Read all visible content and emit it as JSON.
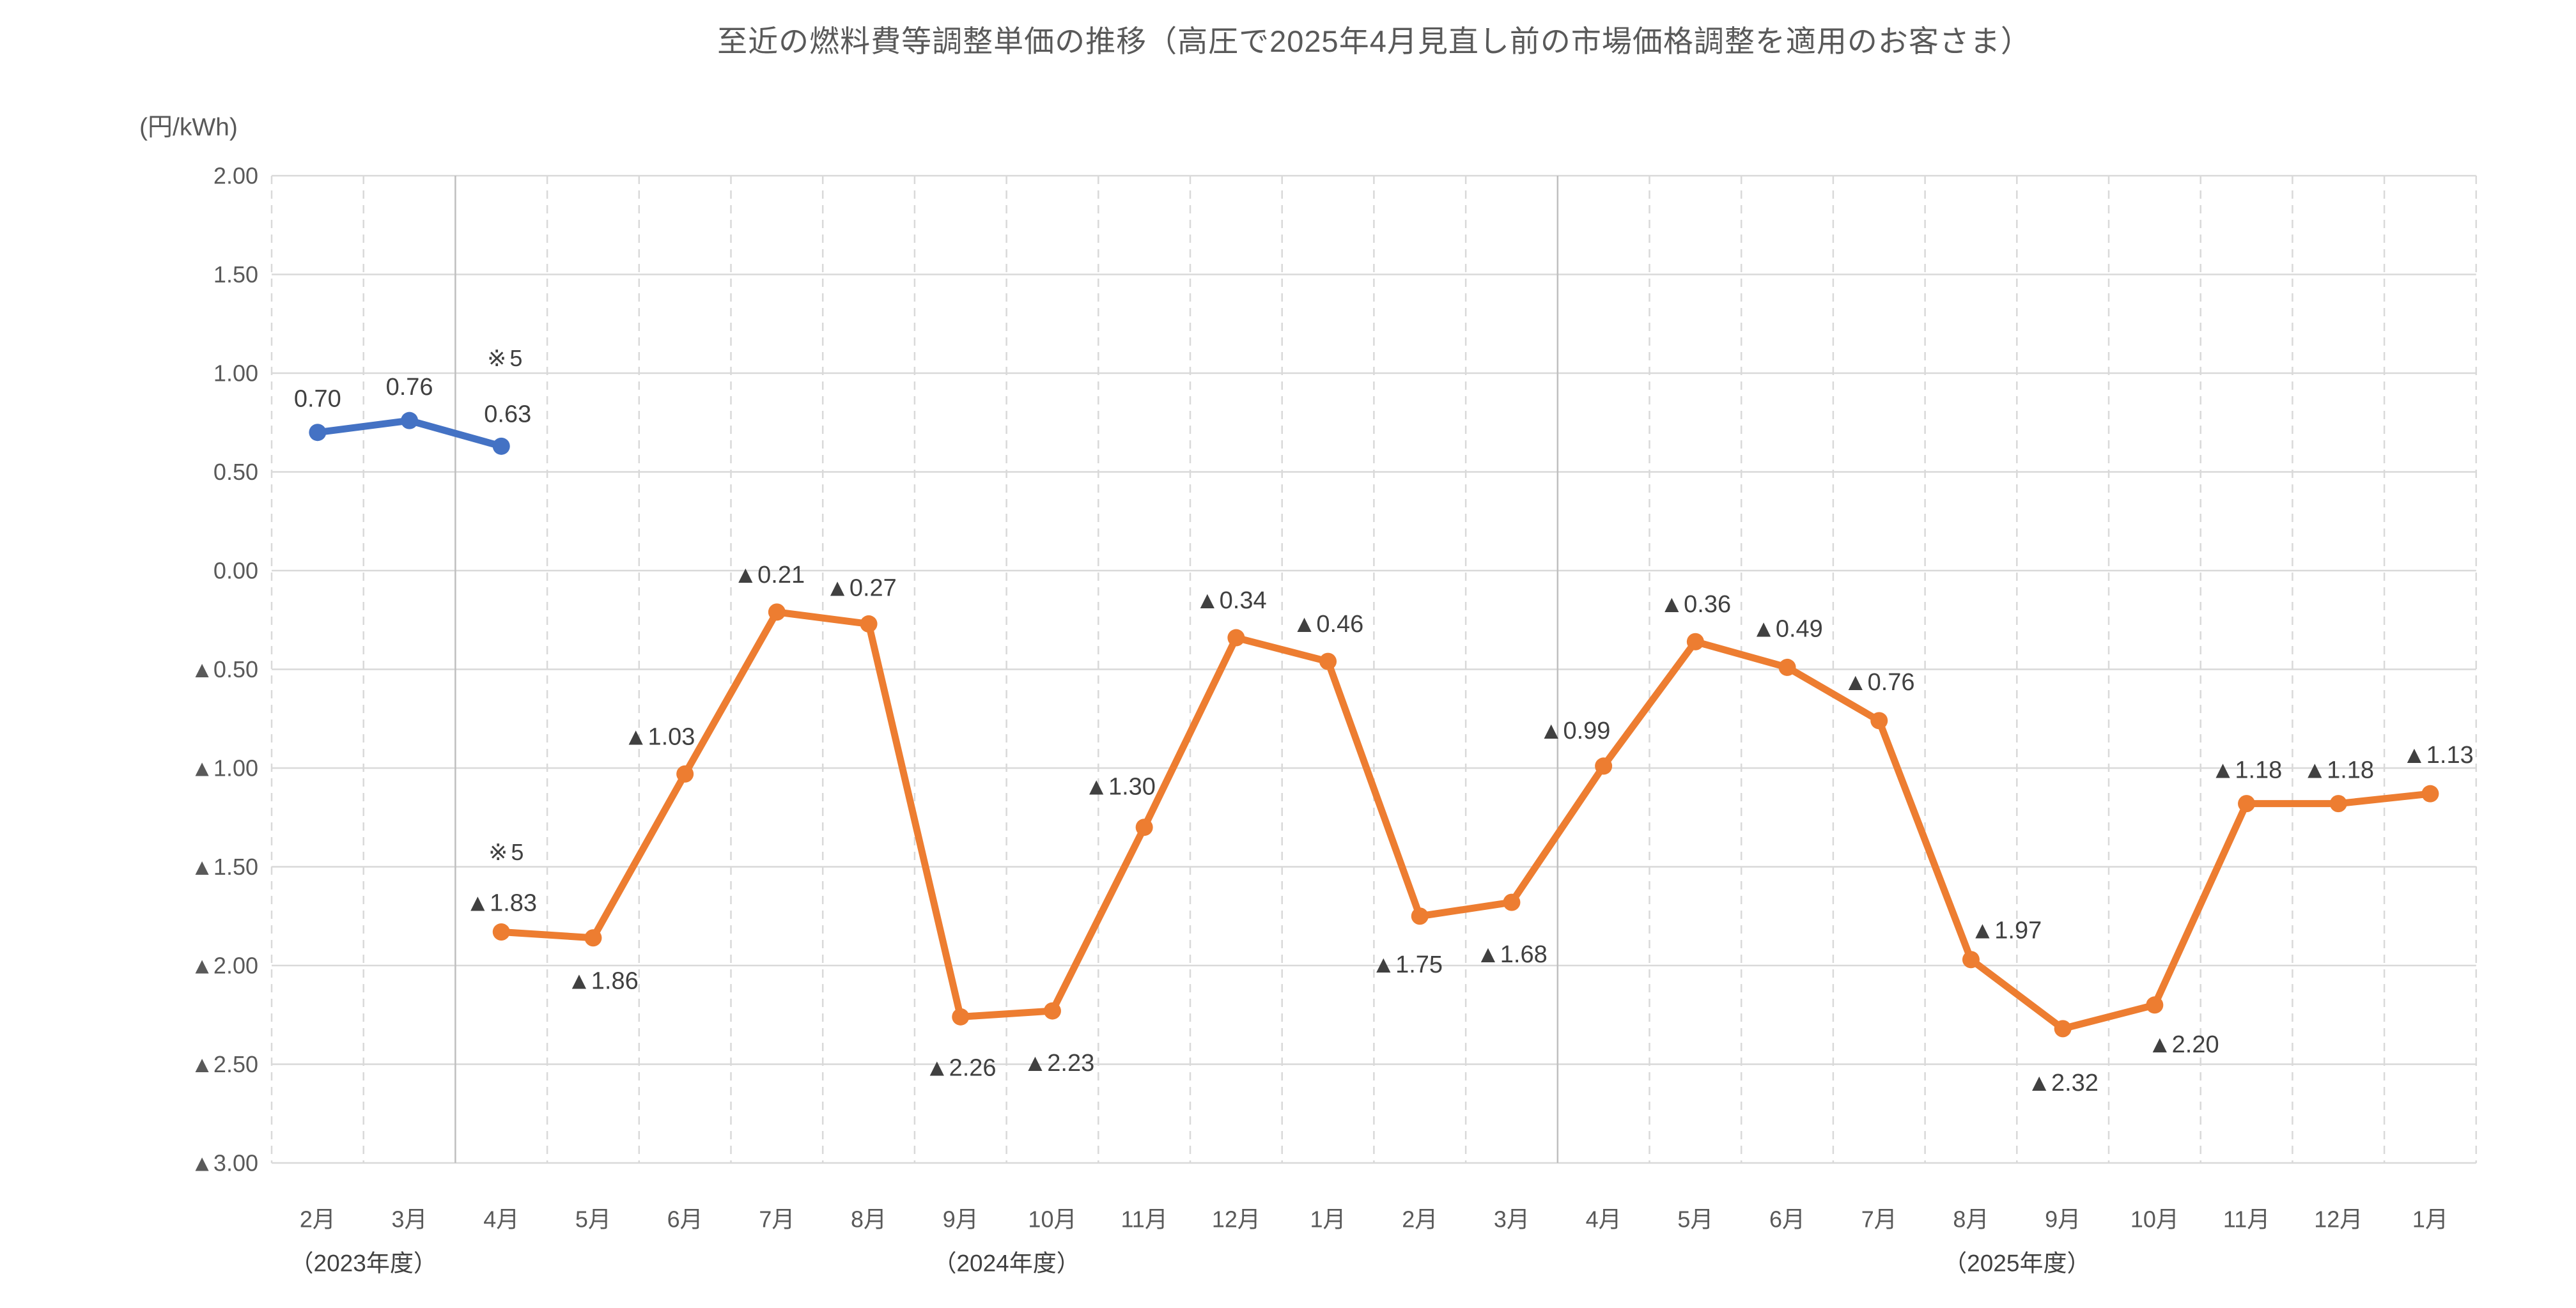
{
  "title": "至近の燃料費等調整単価の推移（高圧で2025年4月見直し前の市場価格調整を適用のお客さま）",
  "y_axis": {
    "unit": "(円/kWh)",
    "ticks": [
      {
        "v": 2.0,
        "label": "2.00"
      },
      {
        "v": 1.5,
        "label": "1.50"
      },
      {
        "v": 1.0,
        "label": "1.00"
      },
      {
        "v": 0.5,
        "label": "0.50"
      },
      {
        "v": 0.0,
        "label": "0.00"
      },
      {
        "v": -0.5,
        "label": "▲0.50"
      },
      {
        "v": -1.0,
        "label": "▲1.00"
      },
      {
        "v": -1.5,
        "label": "▲1.50"
      },
      {
        "v": -2.0,
        "label": "▲2.00"
      },
      {
        "v": -2.5,
        "label": "▲2.50"
      },
      {
        "v": -3.0,
        "label": "▲3.00"
      }
    ]
  },
  "colors": {
    "blue_series": "#4472C4",
    "orange_series": "#ED7D31",
    "data_label": "#404040",
    "axis_label": "#595959",
    "fiscal_label": "#404040",
    "gridline": "#D9D9D9",
    "year_separator": "#BFBFBF"
  },
  "chart_data": {
    "type": "line",
    "title": "至近の燃料費等調整単価の推移（高圧で2025年4月見直し前の市場価格調整を適用のお客さま）",
    "ylabel": "(円/kWh)",
    "ylim": [
      -3.0,
      2.0
    ],
    "ytick_step": 0.5,
    "grid": true,
    "legend": "none",
    "categories": [
      "2月",
      "3月",
      "4月",
      "5月",
      "6月",
      "7月",
      "8月",
      "9月",
      "10月",
      "11月",
      "12月",
      "1月",
      "2月",
      "3月",
      "4月",
      "5月",
      "6月",
      "7月",
      "8月",
      "9月",
      "10月",
      "11月",
      "12月",
      "1月"
    ],
    "fiscal_groups": [
      {
        "label": "（2023年度）",
        "from": 0,
        "to": 1
      },
      {
        "label": "（2024年度）",
        "from": 2,
        "to": 13
      },
      {
        "label": "（2025年度）",
        "from": 14,
        "to": 23
      }
    ],
    "separators_before_index": [
      2,
      14
    ],
    "series": [
      {
        "id": "blue-line",
        "color": "#4472C4",
        "points": [
          {
            "i": 0,
            "value": 0.7,
            "label": "0.70",
            "label_offset": [
              0,
              -52
            ]
          },
          {
            "i": 1,
            "value": 0.76,
            "label": "0.76",
            "label_offset": [
              0,
              -52
            ]
          },
          {
            "i": 2,
            "value": 0.63,
            "label": "0.63",
            "label_offset": [
              10,
              -50
            ],
            "note": "※5",
            "note_offset": [
              8,
              -138
            ]
          }
        ]
      },
      {
        "id": "orange-line",
        "color": "#ED7D31",
        "points": [
          {
            "i": 2,
            "value": -1.83,
            "label": "▲1.83",
            "label_offset": [
              0,
              -45
            ],
            "note": "※5",
            "note_offset": [
              10,
              -125
            ]
          },
          {
            "i": 3,
            "value": -1.86,
            "label": "▲1.86",
            "label_offset": [
              15,
              68
            ]
          },
          {
            "i": 4,
            "value": -1.03,
            "label": "▲1.03",
            "label_offset": [
              -40,
              -58
            ]
          },
          {
            "i": 5,
            "value": -0.21,
            "label": "▲0.21",
            "label_offset": [
              -12,
              -58
            ]
          },
          {
            "i": 6,
            "value": -0.27,
            "label": "▲0.27",
            "label_offset": [
              -12,
              -56
            ]
          },
          {
            "i": 7,
            "value": -2.26,
            "label": "▲2.26",
            "label_offset": [
              0,
              80
            ]
          },
          {
            "i": 8,
            "value": -2.23,
            "label": "▲2.23",
            "label_offset": [
              10,
              82
            ]
          },
          {
            "i": 9,
            "value": -1.3,
            "label": "▲1.30",
            "label_offset": [
              -38,
              -63
            ]
          },
          {
            "i": 10,
            "value": -0.34,
            "label": "▲0.34",
            "label_offset": [
              -8,
              -58
            ]
          },
          {
            "i": 11,
            "value": -0.46,
            "label": "▲0.46",
            "label_offset": [
              0,
              -58
            ]
          },
          {
            "i": 12,
            "value": -1.75,
            "label": "▲1.75",
            "label_offset": [
              -20,
              76
            ]
          },
          {
            "i": 13,
            "value": -1.68,
            "label": "▲1.68",
            "label_offset": [
              0,
              82
            ]
          },
          {
            "i": 14,
            "value": -0.99,
            "label": "▲0.99",
            "label_offset": [
              -45,
              -55
            ]
          },
          {
            "i": 15,
            "value": -0.36,
            "label": "▲0.36",
            "label_offset": [
              0,
              -58
            ]
          },
          {
            "i": 16,
            "value": -0.49,
            "label": "▲0.49",
            "label_offset": [
              0,
              -60
            ]
          },
          {
            "i": 17,
            "value": -0.76,
            "label": "▲0.76",
            "label_offset": [
              0,
              -60
            ]
          },
          {
            "i": 18,
            "value": -1.97,
            "label": "▲1.97",
            "label_offset": [
              55,
              -45
            ]
          },
          {
            "i": 19,
            "value": -2.32,
            "label": "▲2.32",
            "label_offset": [
              0,
              85
            ]
          },
          {
            "i": 20,
            "value": -2.2,
            "label": "▲2.20",
            "label_offset": [
              45,
              62
            ]
          },
          {
            "i": 21,
            "value": -1.18,
            "label": "▲1.18",
            "label_offset": [
              0,
              -52
            ]
          },
          {
            "i": 22,
            "value": -1.18,
            "label": "▲1.18",
            "label_offset": [
              0,
              -52
            ]
          },
          {
            "i": 23,
            "value": -1.13,
            "label": "▲1.13",
            "label_offset": [
              12,
              -60
            ]
          }
        ]
      }
    ]
  }
}
